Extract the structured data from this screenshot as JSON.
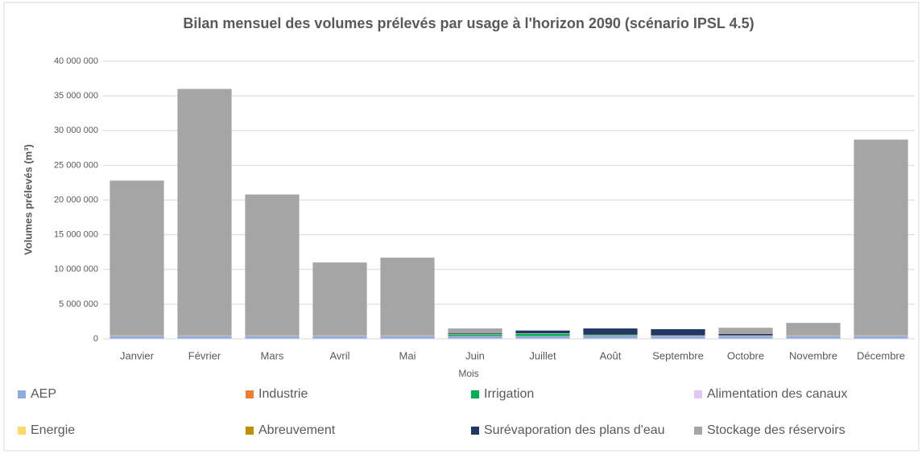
{
  "chart_data": {
    "type": "stacked_bar",
    "title": "Bilan mensuel des volumes prélevés par usage à l'horizon 2090 (scénario IPSL 4.5)",
    "x_label": "Mois",
    "y_label": "Volumes prélevés (m³)",
    "categories": [
      "Janvier",
      "Février",
      "Mars",
      "Avril",
      "Mai",
      "Juin",
      "Juillet",
      "Août",
      "Septembre",
      "Octobre",
      "Novembre",
      "Décembre"
    ],
    "series": [
      {
        "name": "AEP",
        "color": "#8faadc",
        "values": [
          400000,
          400000,
          400000,
          400000,
          400000,
          400000,
          400000,
          400000,
          400000,
          400000,
          400000,
          400000
        ]
      },
      {
        "name": "Industrie",
        "color": "#ed7d31",
        "values": [
          30000,
          30000,
          30000,
          30000,
          30000,
          30000,
          30000,
          30000,
          30000,
          30000,
          30000,
          30000
        ]
      },
      {
        "name": "Irrigation",
        "color": "#00b050",
        "values": [
          0,
          0,
          0,
          0,
          0,
          200000,
          300000,
          100000,
          0,
          0,
          0,
          0
        ]
      },
      {
        "name": "Alimentation des canaux",
        "color": "#e2c6f5",
        "values": [
          50000,
          50000,
          50000,
          50000,
          50000,
          50000,
          50000,
          50000,
          50000,
          50000,
          50000,
          50000
        ]
      },
      {
        "name": "Energie",
        "color": "#ffd966",
        "values": [
          0,
          0,
          0,
          0,
          0,
          0,
          0,
          0,
          0,
          0,
          0,
          0
        ]
      },
      {
        "name": "Abreuvement",
        "color": "#bf9000",
        "values": [
          20000,
          20000,
          20000,
          20000,
          20000,
          20000,
          20000,
          20000,
          20000,
          20000,
          20000,
          20000
        ]
      },
      {
        "name": "Surévaporation des plans d'eau",
        "color": "#203864",
        "values": [
          0,
          0,
          0,
          0,
          0,
          100000,
          400000,
          900000,
          900000,
          200000,
          0,
          0
        ]
      },
      {
        "name": "Stockage des réservoirs",
        "color": "#a5a5a5",
        "values": [
          22300000,
          35500000,
          20300000,
          10500000,
          11200000,
          700000,
          0,
          0,
          0,
          900000,
          1800000,
          28200000
        ]
      }
    ],
    "ylim": [
      0,
      40000000
    ],
    "yticks": [
      {
        "value": 0,
        "label": "0"
      },
      {
        "value": 5000000,
        "label": "5 000 000"
      },
      {
        "value": 10000000,
        "label": "10 000 000"
      },
      {
        "value": 15000000,
        "label": "15 000 000"
      },
      {
        "value": 20000000,
        "label": "20 000 000"
      },
      {
        "value": 25000000,
        "label": "25 000 000"
      },
      {
        "value": 30000000,
        "label": "30 000 000"
      },
      {
        "value": 35000000,
        "label": "35 000 000"
      },
      {
        "value": 40000000,
        "label": "40 000 000"
      }
    ],
    "grid": true
  }
}
